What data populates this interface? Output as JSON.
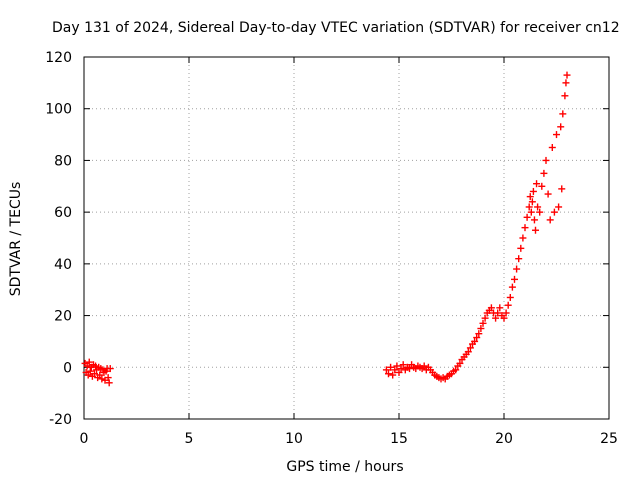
{
  "chart_data": {
    "type": "scatter",
    "title": "Day 131 of 2024, Sidereal Day-to-day VTEC variation (SDTVAR) for receiver cn12",
    "xlabel": "GPS time / hours",
    "ylabel": "SDTVAR / TECUs",
    "xlim": [
      0,
      25
    ],
    "ylim": [
      -20,
      120
    ],
    "xticks": [
      0,
      5,
      10,
      15,
      20,
      25
    ],
    "yticks": [
      -20,
      0,
      20,
      40,
      60,
      80,
      100,
      120
    ],
    "grid": true,
    "marker": "+",
    "series": [
      {
        "name": "SDTVAR",
        "color": "#ff0000",
        "points": [
          [
            0.05,
            1.5
          ],
          [
            0.1,
            -2.0
          ],
          [
            0.15,
            0.5
          ],
          [
            0.2,
            -3.0
          ],
          [
            0.25,
            2.0
          ],
          [
            0.3,
            -1.5
          ],
          [
            0.35,
            0.0
          ],
          [
            0.4,
            -3.5
          ],
          [
            0.45,
            1.0
          ],
          [
            0.5,
            -2.5
          ],
          [
            0.55,
            0.5
          ],
          [
            0.6,
            -1.0
          ],
          [
            0.65,
            -4.0
          ],
          [
            0.7,
            0.0
          ],
          [
            0.75,
            -3.0
          ],
          [
            0.8,
            -0.5
          ],
          [
            0.85,
            -4.5
          ],
          [
            0.9,
            -1.0
          ],
          [
            0.95,
            -2.0
          ],
          [
            1.0,
            -5.0
          ],
          [
            1.05,
            -1.5
          ],
          [
            1.1,
            -0.5
          ],
          [
            1.15,
            -4.0
          ],
          [
            1.2,
            -6.0
          ],
          [
            1.25,
            -0.5
          ],
          [
            14.4,
            -1.0
          ],
          [
            14.5,
            -2.5
          ],
          [
            14.6,
            0.0
          ],
          [
            14.7,
            -3.0
          ],
          [
            14.8,
            -1.0
          ],
          [
            14.9,
            0.5
          ],
          [
            15.0,
            -2.0
          ],
          [
            15.1,
            -0.5
          ],
          [
            15.2,
            1.0
          ],
          [
            15.3,
            -1.0
          ],
          [
            15.4,
            0.0
          ],
          [
            15.5,
            -0.5
          ],
          [
            15.6,
            1.0
          ],
          [
            15.7,
            0.0
          ],
          [
            15.8,
            -0.5
          ],
          [
            15.9,
            0.5
          ],
          [
            16.0,
            0.0
          ],
          [
            16.1,
            -0.5
          ],
          [
            16.2,
            0.5
          ],
          [
            16.3,
            -1.0
          ],
          [
            16.4,
            0.0
          ],
          [
            16.5,
            -1.0
          ],
          [
            16.6,
            -2.0
          ],
          [
            16.7,
            -3.0
          ],
          [
            16.8,
            -3.5
          ],
          [
            16.9,
            -4.0
          ],
          [
            17.0,
            -4.5
          ],
          [
            17.1,
            -4.0
          ],
          [
            17.2,
            -4.5
          ],
          [
            17.3,
            -3.5
          ],
          [
            17.4,
            -3.0
          ],
          [
            17.5,
            -2.5
          ],
          [
            17.6,
            -1.5
          ],
          [
            17.7,
            -1.0
          ],
          [
            17.8,
            0.5
          ],
          [
            17.9,
            1.5
          ],
          [
            18.0,
            3.0
          ],
          [
            18.1,
            4.0
          ],
          [
            18.2,
            5.0
          ],
          [
            18.3,
            6.0
          ],
          [
            18.4,
            7.5
          ],
          [
            18.5,
            9.0
          ],
          [
            18.6,
            10.0
          ],
          [
            18.7,
            11.5
          ],
          [
            18.8,
            13.0
          ],
          [
            18.9,
            15.0
          ],
          [
            19.0,
            17.0
          ],
          [
            19.1,
            19.0
          ],
          [
            19.2,
            21.0
          ],
          [
            19.3,
            22.0
          ],
          [
            19.4,
            23.0
          ],
          [
            19.5,
            21.0
          ],
          [
            19.6,
            19.0
          ],
          [
            19.7,
            21.0
          ],
          [
            19.8,
            23.0
          ],
          [
            19.9,
            20.0
          ],
          [
            20.0,
            19.0
          ],
          [
            20.1,
            21.0
          ],
          [
            20.2,
            24.0
          ],
          [
            20.3,
            27.0
          ],
          [
            20.4,
            31.0
          ],
          [
            20.5,
            34.0
          ],
          [
            20.6,
            38.0
          ],
          [
            20.7,
            42.0
          ],
          [
            20.8,
            46.0
          ],
          [
            20.9,
            50.0
          ],
          [
            21.0,
            54.0
          ],
          [
            21.1,
            58.0
          ],
          [
            21.2,
            62.0
          ],
          [
            21.25,
            66.0
          ],
          [
            21.3,
            60.0
          ],
          [
            21.35,
            64.0
          ],
          [
            21.4,
            68.0
          ],
          [
            21.45,
            57.0
          ],
          [
            21.5,
            53.0
          ],
          [
            21.55,
            71.0
          ],
          [
            21.6,
            62.0
          ],
          [
            21.7,
            60.0
          ],
          [
            21.8,
            70.0
          ],
          [
            21.9,
            75.0
          ],
          [
            22.0,
            80.0
          ],
          [
            22.1,
            67.0
          ],
          [
            22.2,
            57.0
          ],
          [
            22.3,
            85.0
          ],
          [
            22.4,
            60.0
          ],
          [
            22.5,
            90.0
          ],
          [
            22.6,
            62.0
          ],
          [
            22.7,
            93.0
          ],
          [
            22.75,
            69.0
          ],
          [
            22.8,
            98.0
          ],
          [
            22.9,
            105.0
          ],
          [
            22.95,
            110.0
          ],
          [
            23.0,
            113.0
          ]
        ]
      }
    ]
  }
}
